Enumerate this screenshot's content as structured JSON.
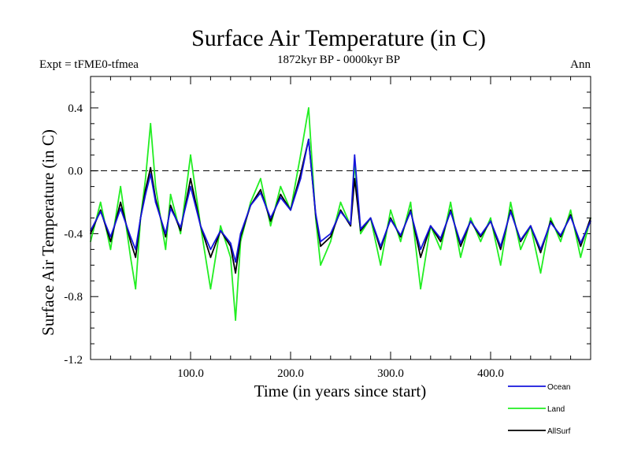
{
  "chart_data": {
    "type": "line",
    "title": "Surface Air Temperature (in C)",
    "subtitle_left": "Expt = tFME0-tfmea",
    "subtitle_center": "1872kyr BP - 0000kyr BP",
    "subtitle_right": "Ann",
    "xlabel": "Time (in years since start)",
    "ylabel": "Surface Air Temperature (in C)",
    "xlim": [
      0,
      500
    ],
    "ylim": [
      -1.2,
      0.6
    ],
    "xticks": [
      {
        "value": 100,
        "label": "100.0"
      },
      {
        "value": 200,
        "label": "200.0"
      },
      {
        "value": 300,
        "label": "300.0"
      },
      {
        "value": 400,
        "label": "400.0"
      }
    ],
    "yticks": [
      {
        "value": -1.2,
        "label": "-1.2"
      },
      {
        "value": -0.8,
        "label": "-0.8"
      },
      {
        "value": -0.4,
        "label": "-0.4"
      },
      {
        "value": 0.0,
        "label": "0.0"
      },
      {
        "value": 0.4,
        "label": "0.4"
      }
    ],
    "reference_line": 0.0,
    "series": [
      {
        "name": "Land",
        "color": "#22ee22",
        "x": [
          0,
          10,
          20,
          30,
          40,
          45,
          50,
          55,
          60,
          65,
          70,
          75,
          80,
          90,
          100,
          110,
          120,
          130,
          140,
          145,
          150,
          160,
          170,
          180,
          190,
          200,
          210,
          218,
          225,
          230,
          240,
          250,
          260,
          264,
          270,
          280,
          290,
          300,
          310,
          320,
          330,
          340,
          350,
          360,
          370,
          380,
          390,
          400,
          410,
          420,
          430,
          440,
          450,
          460,
          470,
          480,
          490,
          500
        ],
        "values": [
          -0.45,
          -0.2,
          -0.5,
          -0.1,
          -0.55,
          -0.75,
          -0.3,
          -0.05,
          0.3,
          -0.1,
          -0.3,
          -0.5,
          -0.15,
          -0.4,
          0.1,
          -0.35,
          -0.75,
          -0.35,
          -0.55,
          -0.95,
          -0.45,
          -0.2,
          -0.05,
          -0.35,
          -0.1,
          -0.25,
          0.1,
          0.4,
          -0.3,
          -0.6,
          -0.45,
          -0.2,
          -0.35,
          0.05,
          -0.4,
          -0.3,
          -0.6,
          -0.25,
          -0.45,
          -0.2,
          -0.75,
          -0.35,
          -0.5,
          -0.2,
          -0.55,
          -0.3,
          -0.45,
          -0.3,
          -0.6,
          -0.2,
          -0.5,
          -0.35,
          -0.65,
          -0.3,
          -0.45,
          -0.25,
          -0.55,
          -0.3
        ]
      },
      {
        "name": "AllSurf",
        "color": "#000000",
        "x": [
          0,
          10,
          20,
          30,
          40,
          45,
          50,
          55,
          60,
          65,
          70,
          75,
          80,
          90,
          100,
          110,
          120,
          130,
          140,
          145,
          150,
          160,
          170,
          180,
          190,
          200,
          210,
          218,
          225,
          230,
          240,
          250,
          260,
          264,
          270,
          280,
          290,
          300,
          310,
          320,
          330,
          340,
          350,
          360,
          370,
          380,
          390,
          400,
          410,
          420,
          430,
          440,
          450,
          460,
          470,
          480,
          490,
          500
        ],
        "values": [
          -0.4,
          -0.25,
          -0.45,
          -0.2,
          -0.45,
          -0.55,
          -0.3,
          -0.12,
          0.02,
          -0.18,
          -0.3,
          -0.42,
          -0.22,
          -0.38,
          -0.05,
          -0.35,
          -0.55,
          -0.38,
          -0.48,
          -0.65,
          -0.42,
          -0.22,
          -0.12,
          -0.32,
          -0.15,
          -0.25,
          -0.02,
          0.2,
          -0.28,
          -0.48,
          -0.42,
          -0.25,
          -0.35,
          -0.05,
          -0.38,
          -0.3,
          -0.5,
          -0.3,
          -0.42,
          -0.25,
          -0.55,
          -0.35,
          -0.45,
          -0.25,
          -0.48,
          -0.32,
          -0.42,
          -0.32,
          -0.5,
          -0.25,
          -0.45,
          -0.35,
          -0.52,
          -0.32,
          -0.42,
          -0.28,
          -0.48,
          -0.3
        ]
      },
      {
        "name": "Ocean",
        "color": "#1515dd",
        "x": [
          0,
          10,
          20,
          30,
          40,
          45,
          50,
          55,
          60,
          65,
          70,
          75,
          80,
          90,
          100,
          110,
          120,
          130,
          140,
          145,
          150,
          160,
          170,
          180,
          190,
          200,
          210,
          218,
          225,
          230,
          240,
          250,
          260,
          264,
          270,
          280,
          290,
          300,
          310,
          320,
          330,
          340,
          350,
          360,
          370,
          380,
          390,
          400,
          410,
          420,
          430,
          440,
          450,
          460,
          470,
          480,
          490,
          500
        ],
        "values": [
          -0.38,
          -0.26,
          -0.42,
          -0.24,
          -0.42,
          -0.5,
          -0.3,
          -0.15,
          -0.02,
          -0.2,
          -0.3,
          -0.4,
          -0.24,
          -0.36,
          -0.1,
          -0.35,
          -0.5,
          -0.38,
          -0.46,
          -0.58,
          -0.4,
          -0.22,
          -0.14,
          -0.3,
          -0.17,
          -0.25,
          -0.05,
          0.2,
          -0.27,
          -0.45,
          -0.4,
          -0.26,
          -0.34,
          0.1,
          -0.37,
          -0.3,
          -0.48,
          -0.31,
          -0.41,
          -0.26,
          -0.5,
          -0.35,
          -0.43,
          -0.26,
          -0.46,
          -0.32,
          -0.41,
          -0.32,
          -0.48,
          -0.26,
          -0.44,
          -0.35,
          -0.5,
          -0.33,
          -0.41,
          -0.29,
          -0.46,
          -0.32
        ]
      }
    ],
    "legend_order": [
      "Ocean",
      "Land",
      "AllSurf"
    ],
    "legend_position": "bottom-right"
  }
}
